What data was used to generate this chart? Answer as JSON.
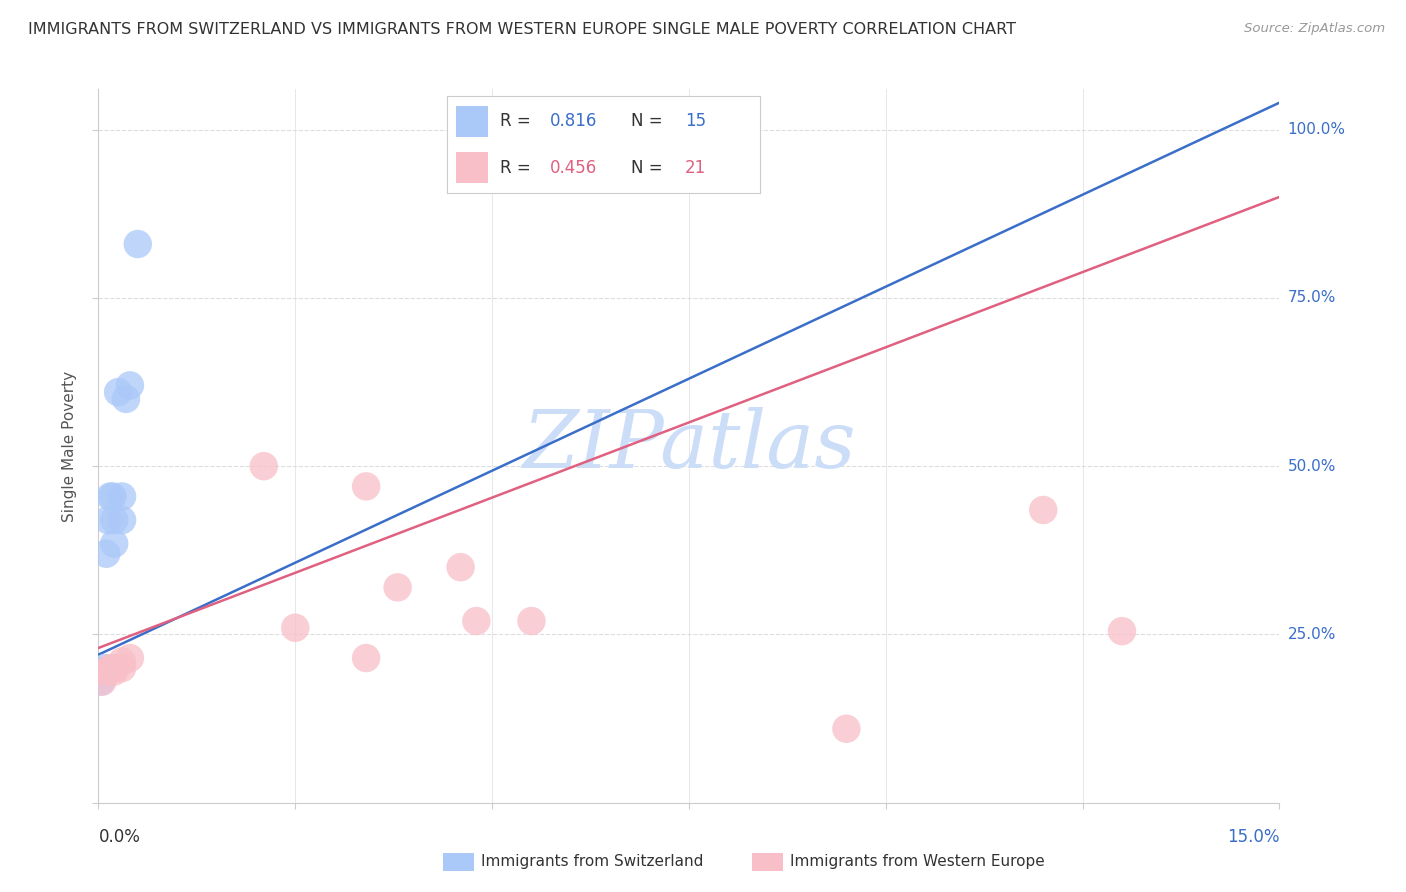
{
  "title": "IMMIGRANTS FROM SWITZERLAND VS IMMIGRANTS FROM WESTERN EUROPE SINGLE MALE POVERTY CORRELATION CHART",
  "source": "Source: ZipAtlas.com",
  "ylabel": "Single Male Poverty",
  "legend_label1": "Immigrants from Switzerland",
  "legend_label2": "Immigrants from Western Europe",
  "R1": 0.816,
  "N1": 15,
  "R2": 0.456,
  "N2": 21,
  "color_blue": "#aac8f8",
  "color_pink": "#f8bfc8",
  "line_blue": "#3a6ec8",
  "line_pink": "#e06080",
  "watermark_color": "#ccddf8",
  "swiss_x": [
    0.0003,
    0.0005,
    0.0008,
    0.001,
    0.0012,
    0.0015,
    0.0018,
    0.002,
    0.002,
    0.0025,
    0.003,
    0.003,
    0.0035,
    0.004,
    0.005
  ],
  "swiss_y": [
    0.18,
    0.195,
    0.2,
    0.37,
    0.42,
    0.455,
    0.455,
    0.385,
    0.42,
    0.61,
    0.42,
    0.455,
    0.6,
    0.62,
    0.83
  ],
  "west_x": [
    0.0005,
    0.001,
    0.001,
    0.0015,
    0.002,
    0.002,
    0.002,
    0.003,
    0.003,
    0.004,
    0.021,
    0.025,
    0.034,
    0.034,
    0.038,
    0.046,
    0.048,
    0.055,
    0.095,
    0.12,
    0.13
  ],
  "west_y": [
    0.18,
    0.195,
    0.195,
    0.2,
    0.195,
    0.2,
    0.2,
    0.2,
    0.21,
    0.215,
    0.5,
    0.26,
    0.47,
    0.215,
    0.32,
    0.35,
    0.27,
    0.27,
    0.11,
    0.435,
    0.255
  ],
  "blue_line_x": [
    0.0,
    0.15
  ],
  "blue_line_y": [
    0.22,
    1.04
  ],
  "pink_line_x": [
    0.0,
    0.15
  ],
  "pink_line_y": [
    0.23,
    0.9
  ],
  "xmin": 0.0,
  "xmax": 0.15,
  "ymin": 0.0,
  "ymax": 1.06,
  "yticks": [
    0.0,
    0.25,
    0.5,
    0.75,
    1.0
  ],
  "xticks": [
    0.0,
    0.025,
    0.05,
    0.075,
    0.1,
    0.125,
    0.15
  ],
  "background_color": "#ffffff",
  "title_color": "#333333",
  "axis_color": "#cccccc",
  "grid_color": "#dddddd"
}
